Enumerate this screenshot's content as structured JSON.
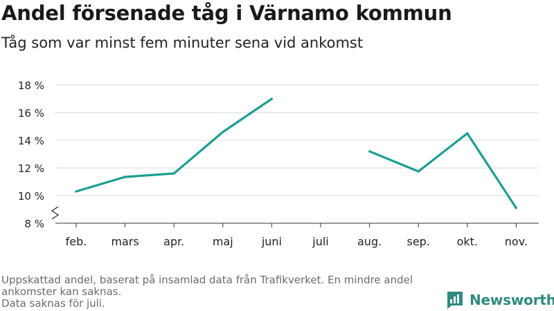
{
  "header": {
    "title": "Andel försenade tåg i Värnamo kommun",
    "subtitle": "Tåg som var minst fem minuter sena vid ankomst"
  },
  "footer": {
    "note_line1": "Uppskattad andel, baserat på insamlad data från Trafikverket. En mindre andel",
    "note_line2": "ankomster kan saknas.",
    "note_line3": "Data saknas för juli."
  },
  "brand": {
    "name": "Newsworthy",
    "color": "#2e8b7e",
    "icon": "bar-chart-logo-icon"
  },
  "colors": {
    "line": "#1a9e91",
    "grid": "#d9d9d9",
    "axis": "#333333"
  },
  "chart_data": {
    "type": "line",
    "title": "Andel försenade tåg i Värnamo kommun",
    "subtitle": "Tåg som var minst fem minuter sena vid ankomst",
    "categories": [
      "feb.",
      "mars",
      "apr.",
      "maj",
      "juni",
      "juli",
      "aug.",
      "sep.",
      "okt.",
      "nov."
    ],
    "series": [
      {
        "values": [
          10.3,
          11.35,
          11.6,
          14.6,
          17.0,
          null,
          13.2,
          11.75,
          14.5,
          9.1
        ]
      }
    ],
    "yticks": [
      8,
      10,
      12,
      14,
      16,
      18
    ],
    "ytick_labels": [
      "8 %",
      "10 %",
      "12 %",
      "14 %",
      "16 %",
      "18 %"
    ],
    "ylim": [
      8,
      18
    ],
    "y_axis_break": true,
    "grid": "horizontal",
    "legend": "none"
  }
}
